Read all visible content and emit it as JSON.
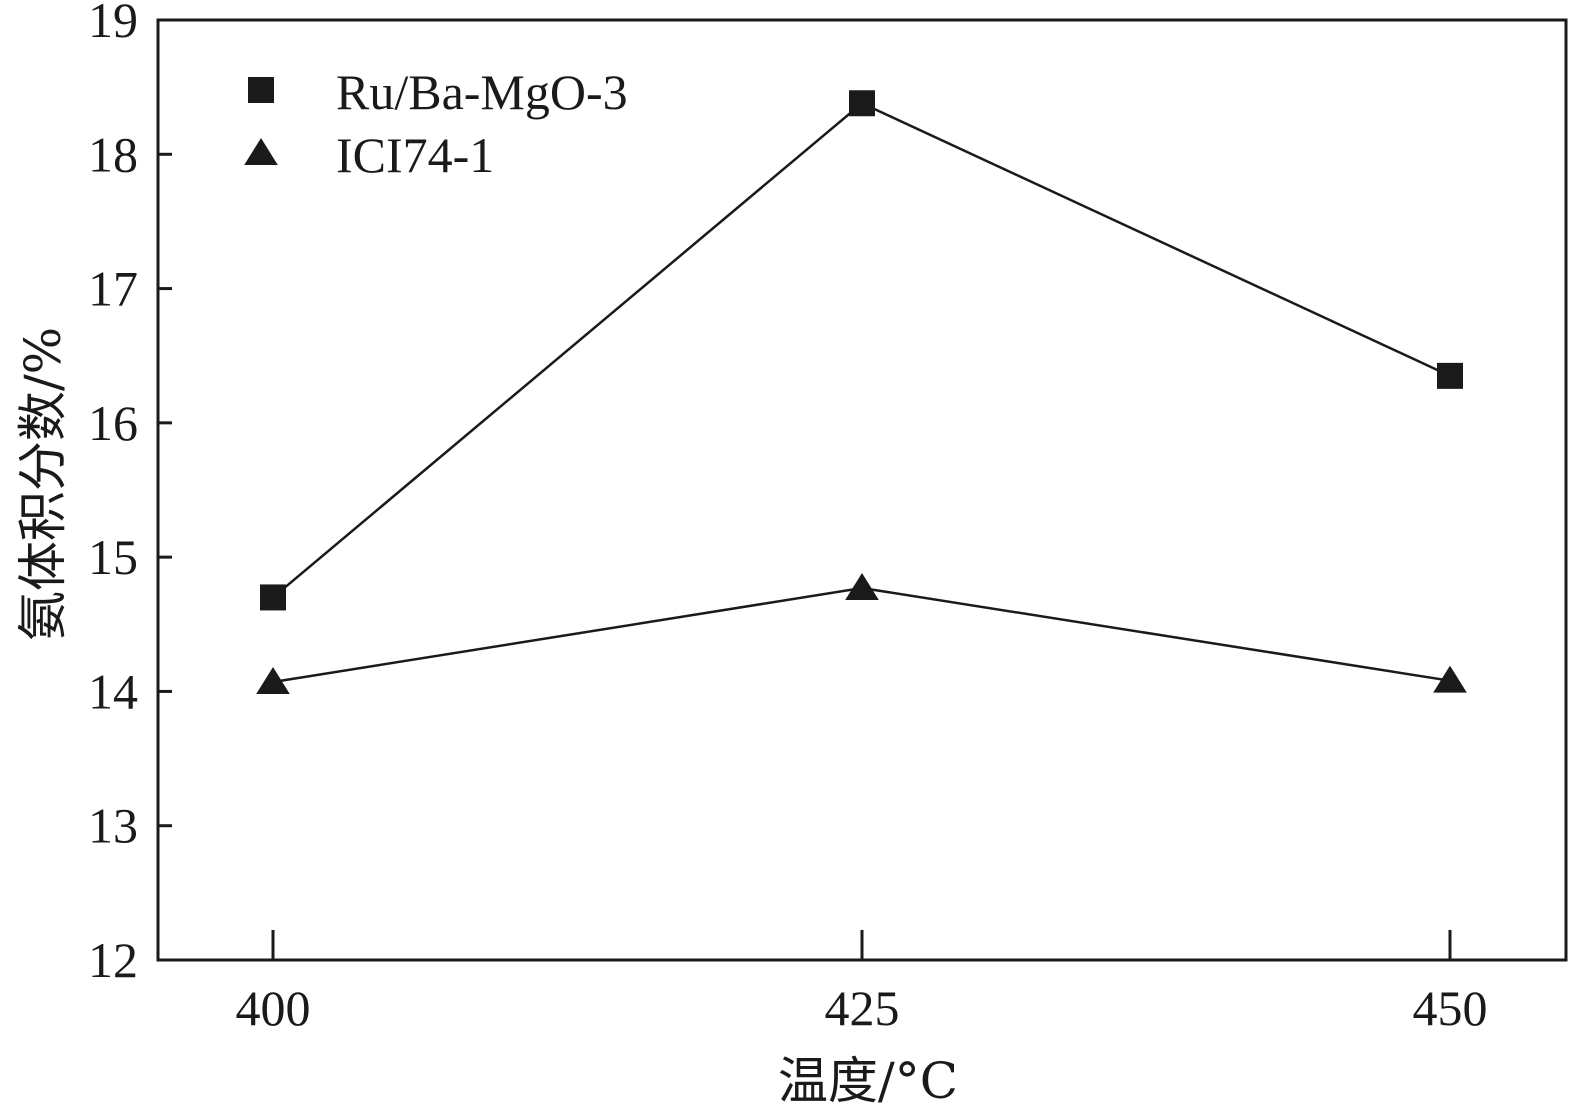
{
  "chart_data": {
    "type": "line",
    "xlabel": "温度/°C",
    "ylabel": "氨体积分数/%",
    "x": [
      400,
      425,
      450
    ],
    "xticks": [
      "400",
      "425",
      "450"
    ],
    "ylim": [
      12,
      19
    ],
    "yticks": [
      "12",
      "13",
      "14",
      "15",
      "16",
      "17",
      "18",
      "19"
    ],
    "grid": false,
    "legend_position": "top-left",
    "series": [
      {
        "name": "Ru/Ba-MgO-3",
        "marker": "square",
        "color": "#1a1a1a",
        "values": [
          14.7,
          18.38,
          16.35
        ]
      },
      {
        "name": "ICI74-1",
        "marker": "triangle",
        "color": "#1a1a1a",
        "values": [
          14.07,
          14.77,
          14.08
        ]
      }
    ]
  }
}
